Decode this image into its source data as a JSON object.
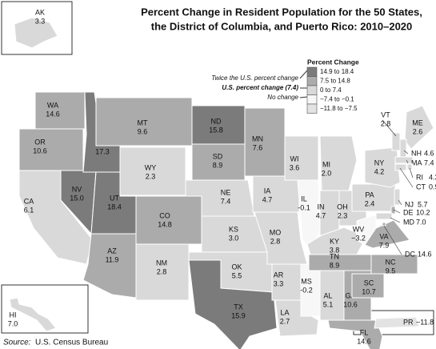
{
  "title_lines": [
    "Percent Change in Resident Population for the 50 States,",
    "the District of Columbia, and Puerto Rico: 2010–2020"
  ],
  "legend": {
    "title": "Percent Change",
    "items": [
      {
        "label": "14.9 to 18.4",
        "min": 14.9,
        "max": 18.4,
        "color": "#7b7b7b"
      },
      {
        "label": "7.5 to 14.8",
        "min": 7.5,
        "max": 14.8,
        "color": "#ababab"
      },
      {
        "label": "0 to 7.4",
        "min": 0,
        "max": 7.4,
        "color": "#d9d9d9"
      },
      {
        "label": "−7.4 to −0.1",
        "min": -7.4,
        "max": -0.1,
        "color": "#f7f7f7"
      },
      {
        "label": "−11.8 to −7.5",
        "min": -11.8,
        "max": -7.5,
        "color": "#e3e3e3"
      }
    ],
    "notes": [
      "Twice the U.S. percent change",
      "U.S. percent change (7.4)",
      "No change"
    ]
  },
  "states": [
    {
      "abbr": "AK",
      "value": 3.3
    },
    {
      "abbr": "WA",
      "value": 14.6
    },
    {
      "abbr": "OR",
      "value": 10.6
    },
    {
      "abbr": "CA",
      "value": 6.1
    },
    {
      "abbr": "NV",
      "value": 15,
      "label": "15.0"
    },
    {
      "abbr": "ID",
      "value": 17.3
    },
    {
      "abbr": "MT",
      "value": 9.6
    },
    {
      "abbr": "WY",
      "value": 2.3
    },
    {
      "abbr": "UT",
      "value": 18.4
    },
    {
      "abbr": "CO",
      "value": 14.8
    },
    {
      "abbr": "AZ",
      "value": 11.9
    },
    {
      "abbr": "NM",
      "value": 2.8
    },
    {
      "abbr": "ND",
      "value": 15.8
    },
    {
      "abbr": "SD",
      "value": 8.9
    },
    {
      "abbr": "NE",
      "value": 7.4
    },
    {
      "abbr": "KS",
      "value": 3,
      "label": "3.0"
    },
    {
      "abbr": "OK",
      "value": 5.5
    },
    {
      "abbr": "TX",
      "value": 15.9
    },
    {
      "abbr": "MN",
      "value": 7.6
    },
    {
      "abbr": "IA",
      "value": 4.7
    },
    {
      "abbr": "MO",
      "value": 2.8
    },
    {
      "abbr": "AR",
      "value": 3.3
    },
    {
      "abbr": "LA",
      "value": 2.7
    },
    {
      "abbr": "WI",
      "value": 3.6
    },
    {
      "abbr": "IL",
      "value": -0.1
    },
    {
      "abbr": "MS",
      "value": -0.2
    },
    {
      "abbr": "MI",
      "value": 2,
      "label": "2.0"
    },
    {
      "abbr": "IN",
      "value": 4.7
    },
    {
      "abbr": "KY",
      "value": 3.8
    },
    {
      "abbr": "TN",
      "value": 8.9
    },
    {
      "abbr": "AL",
      "value": 5.1
    },
    {
      "abbr": "GA",
      "value": 10.6
    },
    {
      "abbr": "FL",
      "value": 14.6
    },
    {
      "abbr": "OH",
      "value": 2.3
    },
    {
      "abbr": "WV",
      "value": -3.2,
      "label": "−3.2"
    },
    {
      "abbr": "PA",
      "value": 2.4
    },
    {
      "abbr": "NY",
      "value": 4.2
    },
    {
      "abbr": "VA",
      "value": 7.9
    },
    {
      "abbr": "NC",
      "value": 9.5
    },
    {
      "abbr": "SC",
      "value": 10.7
    },
    {
      "abbr": "VT",
      "value": 2.8
    },
    {
      "abbr": "ME",
      "value": 2.6
    },
    {
      "abbr": "NH",
      "value": 4.6
    },
    {
      "abbr": "MA",
      "value": 7.4
    },
    {
      "abbr": "RI",
      "value": 4.3
    },
    {
      "abbr": "CT",
      "value": 0.9
    },
    {
      "abbr": "NJ",
      "value": 5.7
    },
    {
      "abbr": "DE",
      "value": 10.2
    },
    {
      "abbr": "MD",
      "value": 7,
      "label": "7.0"
    },
    {
      "abbr": "DC",
      "value": 14.6
    },
    {
      "abbr": "HI",
      "value": 7,
      "label": "7.0"
    },
    {
      "abbr": "PR",
      "value": -11.8,
      "label": "−11.8"
    }
  ],
  "source_label": "Source:",
  "source": "U.S. Census Bureau"
}
